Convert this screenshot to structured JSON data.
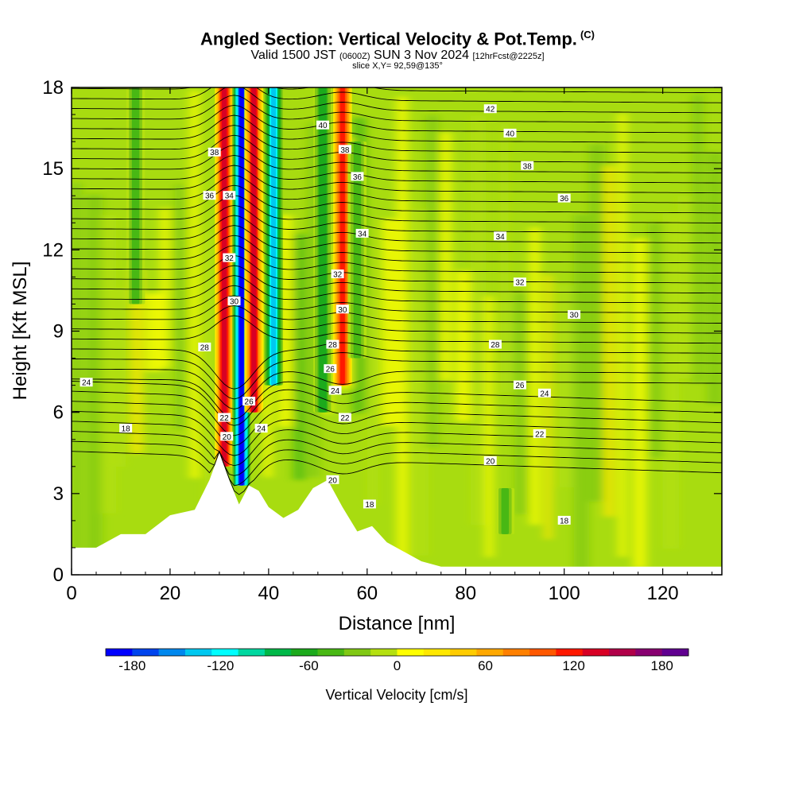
{
  "title": {
    "main": "Angled Section: Vertical Velocity & Pot.Temp.",
    "unit_tag": "(C)",
    "line2_a": "Valid 1500 JST",
    "line2_b": "(0600Z)",
    "line2_c": "SUN 3 Nov 2024",
    "line2_d": "[12hrFcst@2225z]",
    "line3": "slice X,Y= 92,59@135°"
  },
  "colorbar": {
    "label": "Vertical Velocity [cm/s]",
    "ticks": [
      "-180",
      "-120",
      "-60",
      "0",
      "60",
      "120",
      "180"
    ],
    "colors": [
      "#0000ff",
      "#0044ee",
      "#0088ee",
      "#00c8f0",
      "#00ffff",
      "#00d8a0",
      "#00b848",
      "#1caa1c",
      "#48b814",
      "#80c814",
      "#b4e010",
      "#ffff00",
      "#ffe800",
      "#ffcc00",
      "#ffa800",
      "#ff8000",
      "#ff5800",
      "#ff1800",
      "#d80024",
      "#b00048",
      "#880070",
      "#600090"
    ]
  },
  "chart_data": {
    "type": "heatmap",
    "title": "Angled Section: Vertical Velocity & Pot.Temp.",
    "xlabel": "Distance [nm]",
    "ylabel": "Height [Kft MSL]",
    "xlim": [
      0,
      132
    ],
    "ylim": [
      0,
      18
    ],
    "xticks": [
      0,
      20,
      40,
      60,
      80,
      100,
      120
    ],
    "yticks": [
      0,
      3,
      6,
      9,
      12,
      15,
      18
    ],
    "fill_variable": "Vertical Velocity [cm/s]",
    "fill_range": [
      -180,
      180
    ],
    "contour_variable": "Pot.Temp. (C)",
    "terrain_profile": {
      "x": [
        0,
        5,
        10,
        15,
        20,
        25,
        28,
        30,
        32,
        34,
        36,
        38,
        40,
        43,
        46,
        49,
        52,
        55,
        58,
        61,
        64,
        68,
        71,
        75,
        132
      ],
      "y": [
        1.0,
        1.0,
        1.5,
        1.5,
        2.2,
        2.4,
        3.5,
        4.5,
        3.5,
        2.6,
        3.3,
        3.1,
        2.5,
        2.1,
        2.4,
        3.2,
        3.5,
        2.5,
        1.6,
        1.8,
        1.2,
        0.8,
        0.5,
        0.3,
        0.3
      ]
    },
    "features": [
      {
        "kind": "updraft",
        "x": 31,
        "bottom": 4,
        "top": 18,
        "peak": 130
      },
      {
        "kind": "downdraft",
        "x": 34.5,
        "bottom": 3.3,
        "top": 18,
        "peak": -170
      },
      {
        "kind": "updraft",
        "x": 37,
        "bottom": 6,
        "top": 18,
        "peak": 120
      },
      {
        "kind": "downdraft",
        "x": 41,
        "bottom": 7,
        "top": 18,
        "peak": -120
      },
      {
        "kind": "downdraft",
        "x": 51,
        "bottom": 6,
        "top": 18,
        "peak": -60
      },
      {
        "kind": "updraft",
        "x": 55,
        "bottom": 7,
        "top": 18,
        "peak": 110
      },
      {
        "kind": "downdraft",
        "x": 58,
        "bottom": 8,
        "top": 16,
        "peak": -45
      },
      {
        "kind": "downdraft",
        "x": 13,
        "bottom": 10,
        "top": 18,
        "peak": -40
      },
      {
        "kind": "downdraft",
        "x": 88,
        "bottom": 1.5,
        "top": 3.2,
        "peak": -40
      }
    ],
    "contour_labels": [
      {
        "text": "42",
        "x": 85,
        "y": 17.2
      },
      {
        "text": "40",
        "x": 51,
        "y": 16.6
      },
      {
        "text": "40",
        "x": 89,
        "y": 16.3
      },
      {
        "text": "38",
        "x": 29,
        "y": 15.6
      },
      {
        "text": "38",
        "x": 55.5,
        "y": 15.7
      },
      {
        "text": "38",
        "x": 92.5,
        "y": 15.1
      },
      {
        "text": "36",
        "x": 28,
        "y": 14.0
      },
      {
        "text": "34",
        "x": 32,
        "y": 14.0
      },
      {
        "text": "36",
        "x": 58,
        "y": 14.7
      },
      {
        "text": "36",
        "x": 100,
        "y": 13.9
      },
      {
        "text": "34",
        "x": 59,
        "y": 12.6
      },
      {
        "text": "34",
        "x": 87,
        "y": 12.5
      },
      {
        "text": "32",
        "x": 32,
        "y": 11.7
      },
      {
        "text": "32",
        "x": 54,
        "y": 11.1
      },
      {
        "text": "32",
        "x": 91,
        "y": 10.8
      },
      {
        "text": "30",
        "x": 33,
        "y": 10.1
      },
      {
        "text": "30",
        "x": 55,
        "y": 9.8
      },
      {
        "text": "30",
        "x": 102,
        "y": 9.6
      },
      {
        "text": "28",
        "x": 27,
        "y": 8.4
      },
      {
        "text": "28",
        "x": 53,
        "y": 8.5
      },
      {
        "text": "28",
        "x": 86,
        "y": 8.5
      },
      {
        "text": "24",
        "x": 3,
        "y": 7.1
      },
      {
        "text": "26",
        "x": 52.5,
        "y": 7.6
      },
      {
        "text": "26",
        "x": 91,
        "y": 7.0
      },
      {
        "text": "24",
        "x": 53.5,
        "y": 6.8
      },
      {
        "text": "24",
        "x": 96,
        "y": 6.7
      },
      {
        "text": "26",
        "x": 36,
        "y": 6.4
      },
      {
        "text": "22",
        "x": 31,
        "y": 5.8
      },
      {
        "text": "22",
        "x": 55.5,
        "y": 5.8
      },
      {
        "text": "24",
        "x": 38.5,
        "y": 5.4
      },
      {
        "text": "18",
        "x": 11,
        "y": 5.4
      },
      {
        "text": "22",
        "x": 95,
        "y": 5.2
      },
      {
        "text": "20",
        "x": 31.5,
        "y": 5.1
      },
      {
        "text": "20",
        "x": 85,
        "y": 4.2
      },
      {
        "text": "20",
        "x": 53,
        "y": 3.5
      },
      {
        "text": "18",
        "x": 60.5,
        "y": 2.6
      },
      {
        "text": "18",
        "x": 100,
        "y": 2.0
      }
    ]
  }
}
